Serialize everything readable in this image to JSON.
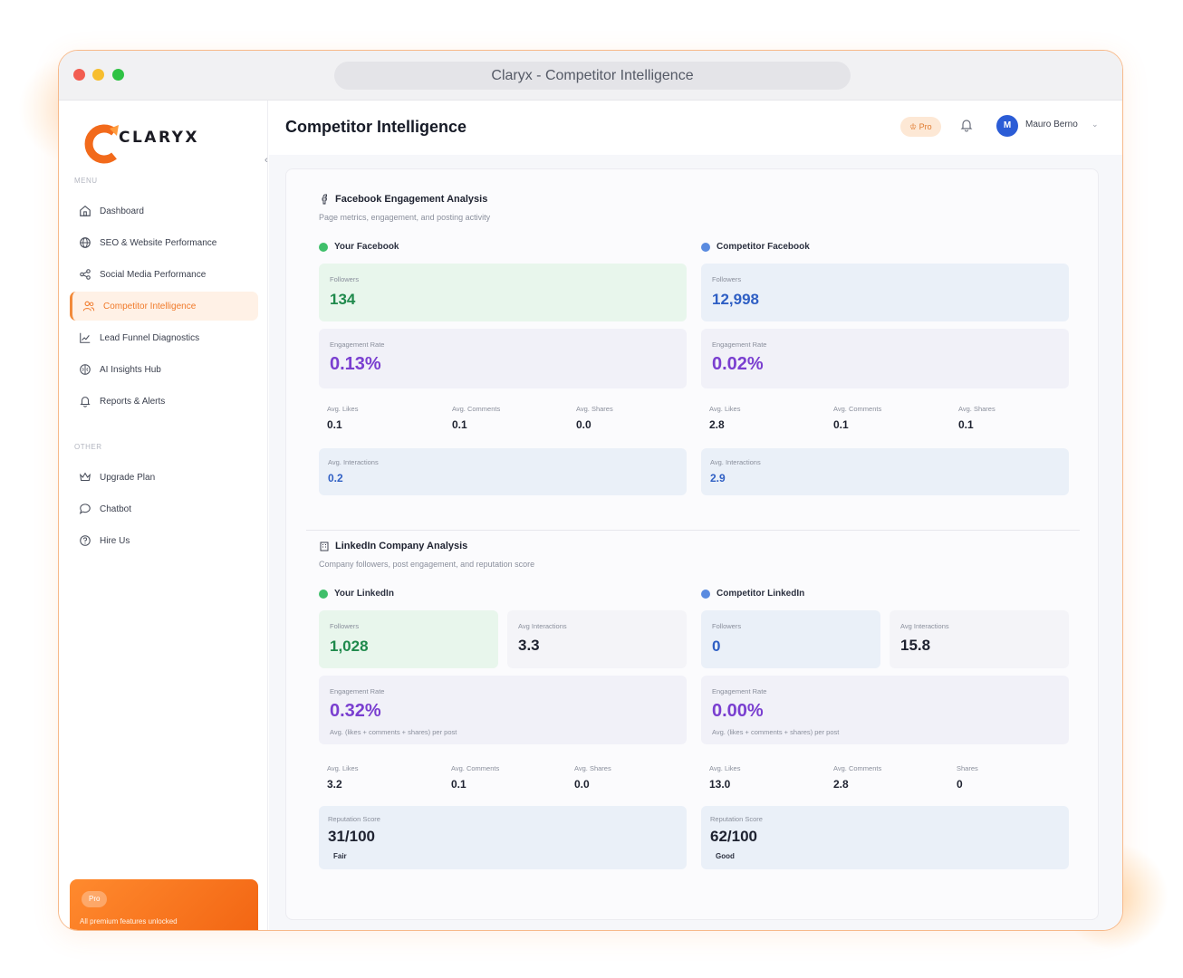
{
  "window": {
    "title": "Claryx - Competitor Intelligence"
  },
  "brand": {
    "logo_text": "CLARYX"
  },
  "sidebar": {
    "menu_label": "MENU",
    "items": [
      {
        "label": "Dashboard",
        "icon": "home-icon"
      },
      {
        "label": "SEO & Website Performance",
        "icon": "globe-icon"
      },
      {
        "label": "Social Media Performance",
        "icon": "share-icon"
      },
      {
        "label": "Competitor Intelligence",
        "icon": "users-icon",
        "active": true
      },
      {
        "label": "Lead Funnel Diagnostics",
        "icon": "chart-line-icon"
      },
      {
        "label": "AI Insights Hub",
        "icon": "brain-icon"
      },
      {
        "label": "Reports & Alerts",
        "icon": "bell-icon"
      }
    ],
    "other_label": "OTHER",
    "other_items": [
      {
        "label": "Upgrade Plan",
        "icon": "crown-icon"
      },
      {
        "label": "Chatbot",
        "icon": "chat-icon"
      },
      {
        "label": "Hire Us",
        "icon": "help-circle-icon"
      }
    ],
    "pro_card": {
      "badge": "Pro",
      "text": "All premium features unlocked"
    }
  },
  "header": {
    "title": "Competitor Intelligence",
    "pro_badge": "Pro",
    "user": {
      "initial": "M",
      "name": "Mauro Berno"
    }
  },
  "facebook": {
    "title": "Facebook Engagement Analysis",
    "subtitle": "Page metrics, engagement, and posting activity",
    "yours": {
      "heading": "Your Facebook",
      "followers_label": "Followers",
      "followers": "134",
      "engagement_label": "Engagement Rate",
      "engagement": "0.13%",
      "avg_likes_label": "Avg. Likes",
      "avg_likes": "0.1",
      "avg_comments_label": "Avg. Comments",
      "avg_comments": "0.1",
      "avg_shares_label": "Avg. Shares",
      "avg_shares": "0.0",
      "interactions_label": "Avg. Interactions",
      "interactions": "0.2"
    },
    "competitor": {
      "heading": "Competitor Facebook",
      "followers_label": "Followers",
      "followers": "12,998",
      "engagement_label": "Engagement Rate",
      "engagement": "0.02%",
      "avg_likes_label": "Avg. Likes",
      "avg_likes": "2.8",
      "avg_comments_label": "Avg. Comments",
      "avg_comments": "0.1",
      "avg_shares_label": "Avg. Shares",
      "avg_shares": "0.1",
      "interactions_label": "Avg. Interactions",
      "interactions": "2.9"
    }
  },
  "linkedin": {
    "title": "LinkedIn Company Analysis",
    "subtitle": "Company followers, post engagement, and reputation score",
    "yours": {
      "heading": "Your LinkedIn",
      "followers_label": "Followers",
      "followers": "1,028",
      "interactions_label": "Avg Interactions",
      "interactions": "3.3",
      "engagement_label": "Engagement Rate",
      "engagement": "0.32%",
      "engagement_note": "Avg. (likes + comments + shares) per post",
      "avg_likes_label": "Avg. Likes",
      "avg_likes": "3.2",
      "avg_comments_label": "Avg. Comments",
      "avg_comments": "0.1",
      "avg_shares_label": "Avg. Shares",
      "avg_shares": "0.0",
      "reputation_label": "Reputation Score",
      "reputation": "31/100",
      "reputation_grade": "Fair"
    },
    "competitor": {
      "heading": "Competitor LinkedIn",
      "followers_label": "Followers",
      "followers": "0",
      "interactions_label": "Avg Interactions",
      "interactions": "15.8",
      "engagement_label": "Engagement Rate",
      "engagement": "0.00%",
      "engagement_note": "Avg. (likes + comments + shares) per post",
      "avg_likes_label": "Avg. Likes",
      "avg_likes": "13.0",
      "avg_comments_label": "Avg. Comments",
      "avg_comments": "2.8",
      "avg_shares_label": "Shares",
      "avg_shares": "0",
      "reputation_label": "Reputation Score",
      "reputation": "62/100",
      "reputation_grade": "Good"
    }
  },
  "colors": {
    "accent": "#f28a3a",
    "green": "#1f8a4c",
    "blue": "#2f5fc4",
    "purple": "#7a3fd0"
  }
}
